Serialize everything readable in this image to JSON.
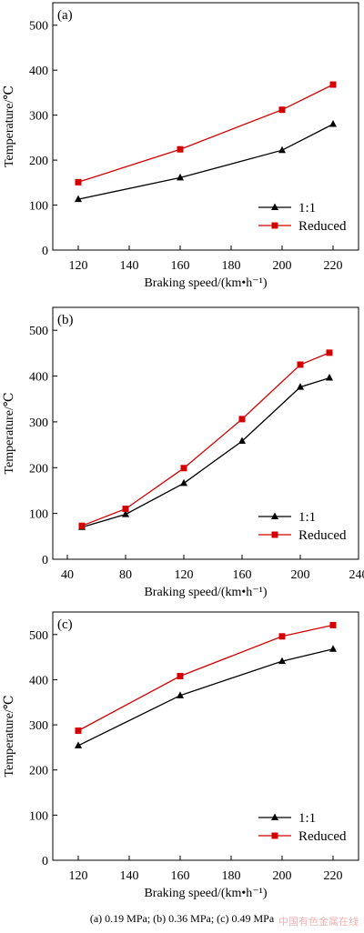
{
  "colors": {
    "series_1_1": "#000000",
    "series_reduced": "#d40000",
    "axis": "#000000"
  },
  "chart_data": [
    {
      "type": "line",
      "panel_label": "(a)",
      "xlabel": "Braking speed/(km•h⁻¹)",
      "ylabel": "Temperature/℃",
      "xlim": [
        110,
        230
      ],
      "ylim": [
        0,
        550
      ],
      "xticks": [
        120,
        140,
        160,
        180,
        200,
        220
      ],
      "yticks": [
        0,
        100,
        200,
        300,
        400,
        500
      ],
      "legend_position": "bottom-right",
      "series": [
        {
          "name": "1:1",
          "marker": "triangle",
          "color": "#000000",
          "x": [
            120,
            160,
            200,
            220
          ],
          "y": [
            113,
            161,
            222,
            280
          ]
        },
        {
          "name": "Reduced",
          "marker": "square",
          "color": "#d40000",
          "x": [
            120,
            160,
            200,
            220
          ],
          "y": [
            151,
            224,
            312,
            368
          ]
        }
      ]
    },
    {
      "type": "line",
      "panel_label": "(b)",
      "xlabel": "Braking speed/(km•h⁻¹)",
      "ylabel": "Temperature/℃",
      "xlim": [
        30,
        240
      ],
      "ylim": [
        0,
        550
      ],
      "xticks": [
        40,
        80,
        120,
        160,
        200,
        240
      ],
      "yticks": [
        0,
        100,
        200,
        300,
        400,
        500
      ],
      "legend_position": "bottom-right",
      "series": [
        {
          "name": "1:1",
          "marker": "triangle",
          "color": "#000000",
          "x": [
            50,
            80,
            120,
            160,
            200,
            220
          ],
          "y": [
            70,
            98,
            166,
            258,
            376,
            396
          ]
        },
        {
          "name": "Reduced",
          "marker": "square",
          "color": "#d40000",
          "x": [
            50,
            80,
            120,
            160,
            200,
            220
          ],
          "y": [
            73,
            110,
            199,
            306,
            425,
            451
          ]
        }
      ]
    },
    {
      "type": "line",
      "panel_label": "(c)",
      "xlabel": "Braking speed/(km•h⁻¹)",
      "ylabel": "Temperature/℃",
      "xlim": [
        110,
        230
      ],
      "ylim": [
        0,
        550
      ],
      "xticks": [
        120,
        140,
        160,
        180,
        200,
        220
      ],
      "yticks": [
        0,
        100,
        200,
        300,
        400,
        500
      ],
      "legend_position": "bottom-right",
      "series": [
        {
          "name": "1:1",
          "marker": "triangle",
          "color": "#000000",
          "x": [
            120,
            160,
            200,
            220
          ],
          "y": [
            254,
            365,
            441,
            468
          ]
        },
        {
          "name": "Reduced",
          "marker": "square",
          "color": "#d40000",
          "x": [
            120,
            160,
            200,
            220
          ],
          "y": [
            287,
            408,
            496,
            521
          ]
        }
      ]
    }
  ],
  "caption": "(a) 0.19 MPa; (b) 0.36 MPa; (c) 0.49 MPa",
  "watermark": "中国有色金属在线"
}
